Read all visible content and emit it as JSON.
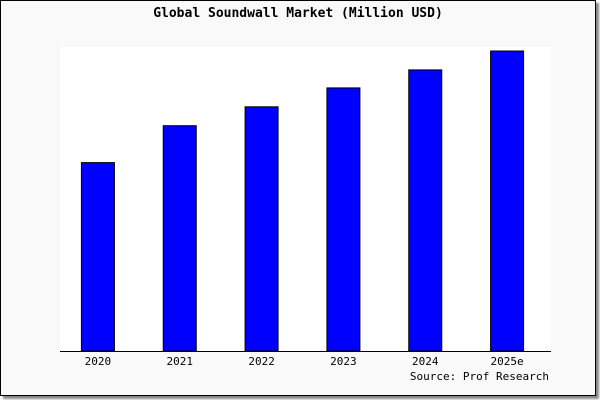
{
  "chart_data": {
    "type": "bar",
    "title": "Global Soundwall Market (Million USD)",
    "categories": [
      "2020",
      "2021",
      "2022",
      "2023",
      "2024",
      "2025e"
    ],
    "values": [
      62.8,
      75.1,
      81.4,
      87.7,
      93.7,
      100
    ],
    "ylim": [
      0,
      100
    ],
    "xlabel": "",
    "ylabel": "",
    "grid": false,
    "bar_color": "#0000ff",
    "source": "Source: Prof Research"
  }
}
